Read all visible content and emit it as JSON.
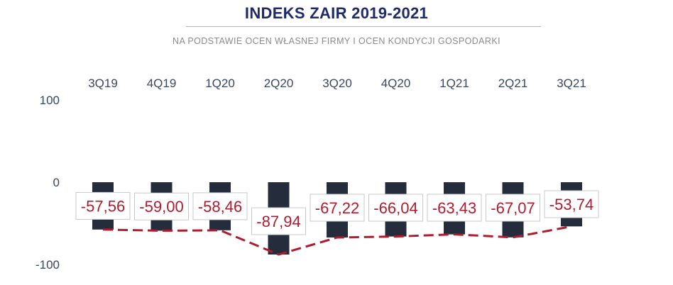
{
  "title": "INDEKS ZAIR 2019-2021",
  "subtitle": "NA PODSTAWIE OCEN WŁASNEJ FIRMY I OCEN KONDYCJI GOSPODARKI",
  "chart_data": {
    "type": "bar",
    "categories": [
      "3Q19",
      "4Q19",
      "1Q20",
      "2Q20",
      "3Q20",
      "4Q20",
      "1Q21",
      "2Q21",
      "3Q21"
    ],
    "values": [
      -57.56,
      -59.0,
      -58.46,
      -87.94,
      -67.22,
      -66.04,
      -63.43,
      -67.07,
      -53.74
    ],
    "data_labels": [
      "-57,56",
      "-59,00",
      "-58,46",
      "-87,94",
      "-67,22",
      "-66,04",
      "-63,43",
      "-67,07",
      "-53,74"
    ],
    "y_ticks": [
      100,
      0,
      -100
    ],
    "y_tick_labels": [
      "100",
      "0",
      "-100"
    ],
    "ylim": [
      -100,
      100
    ],
    "category_axis_position": "top",
    "trend_line": "dashed",
    "grid": false,
    "colors": {
      "bar": "#252d3c",
      "trend_line": "#b01c2e",
      "data_label": "#b01c2e",
      "title": "#1f2a6b",
      "tick_label": "#3b4660"
    }
  }
}
